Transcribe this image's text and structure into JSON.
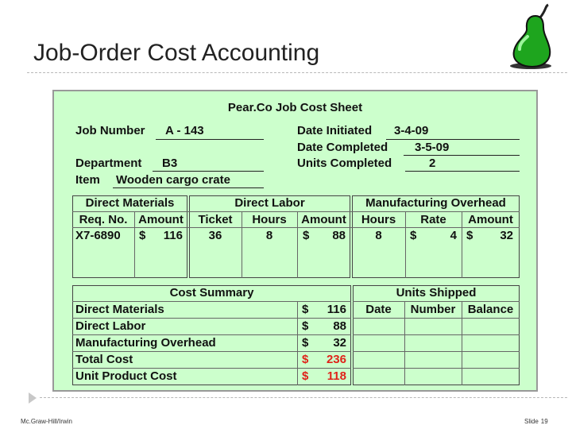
{
  "slide": {
    "title": "Job-Order Cost Accounting",
    "footer_left": "Mc.Graw-Hill/Irwin",
    "footer_slide_label": "Slide",
    "footer_slide_number": "19"
  },
  "sheet": {
    "title": "Pear.Co Job Cost Sheet",
    "job_number_label": "Job Number",
    "job_number_value": "A - 143",
    "department_label": "Department",
    "department_value": "B3",
    "item_label": "Item",
    "item_value": "Wooden cargo crate",
    "date_initiated_label": "Date Initiated",
    "date_initiated_value": "3-4-09",
    "date_completed_label": "Date Completed",
    "date_completed_value": "3-5-09",
    "units_completed_label": "Units Completed",
    "units_completed_value": "2"
  },
  "costs": {
    "direct_materials_header": "Direct Materials",
    "direct_labor_header": "Direct Labor",
    "overhead_header": "Manufacturing Overhead",
    "columns": [
      "Req. No.",
      "Amount",
      "Ticket",
      "Hours",
      "Amount",
      "Hours",
      "Rate",
      "Amount"
    ],
    "row": {
      "req_no": "X7-6890",
      "dm_currency": "$",
      "dm_amount": "116",
      "ticket": "36",
      "dl_hours": "8",
      "dl_currency": "$",
      "dl_amount": "88",
      "oh_hours": "8",
      "rate_currency": "$",
      "rate": "4",
      "oh_currency": "$",
      "oh_amount": "32"
    }
  },
  "summary": {
    "header": "Cost Summary",
    "rows": [
      {
        "label": "Direct Materials",
        "currency": "$",
        "amount": "116"
      },
      {
        "label": "Direct Labor",
        "currency": "$",
        "amount": "88"
      },
      {
        "label": "Manufacturing Overhead",
        "currency": "$",
        "amount": "32"
      },
      {
        "label": "Total Cost",
        "currency": "$",
        "amount": "236"
      },
      {
        "label": "Unit Product Cost",
        "currency": "$",
        "amount": "118"
      }
    ],
    "highlight_color": "#e0221a"
  },
  "shipped": {
    "header": "Units Shipped",
    "columns": [
      "Date",
      "Number",
      "Balance"
    ]
  },
  "logo_icon": "pear-icon"
}
